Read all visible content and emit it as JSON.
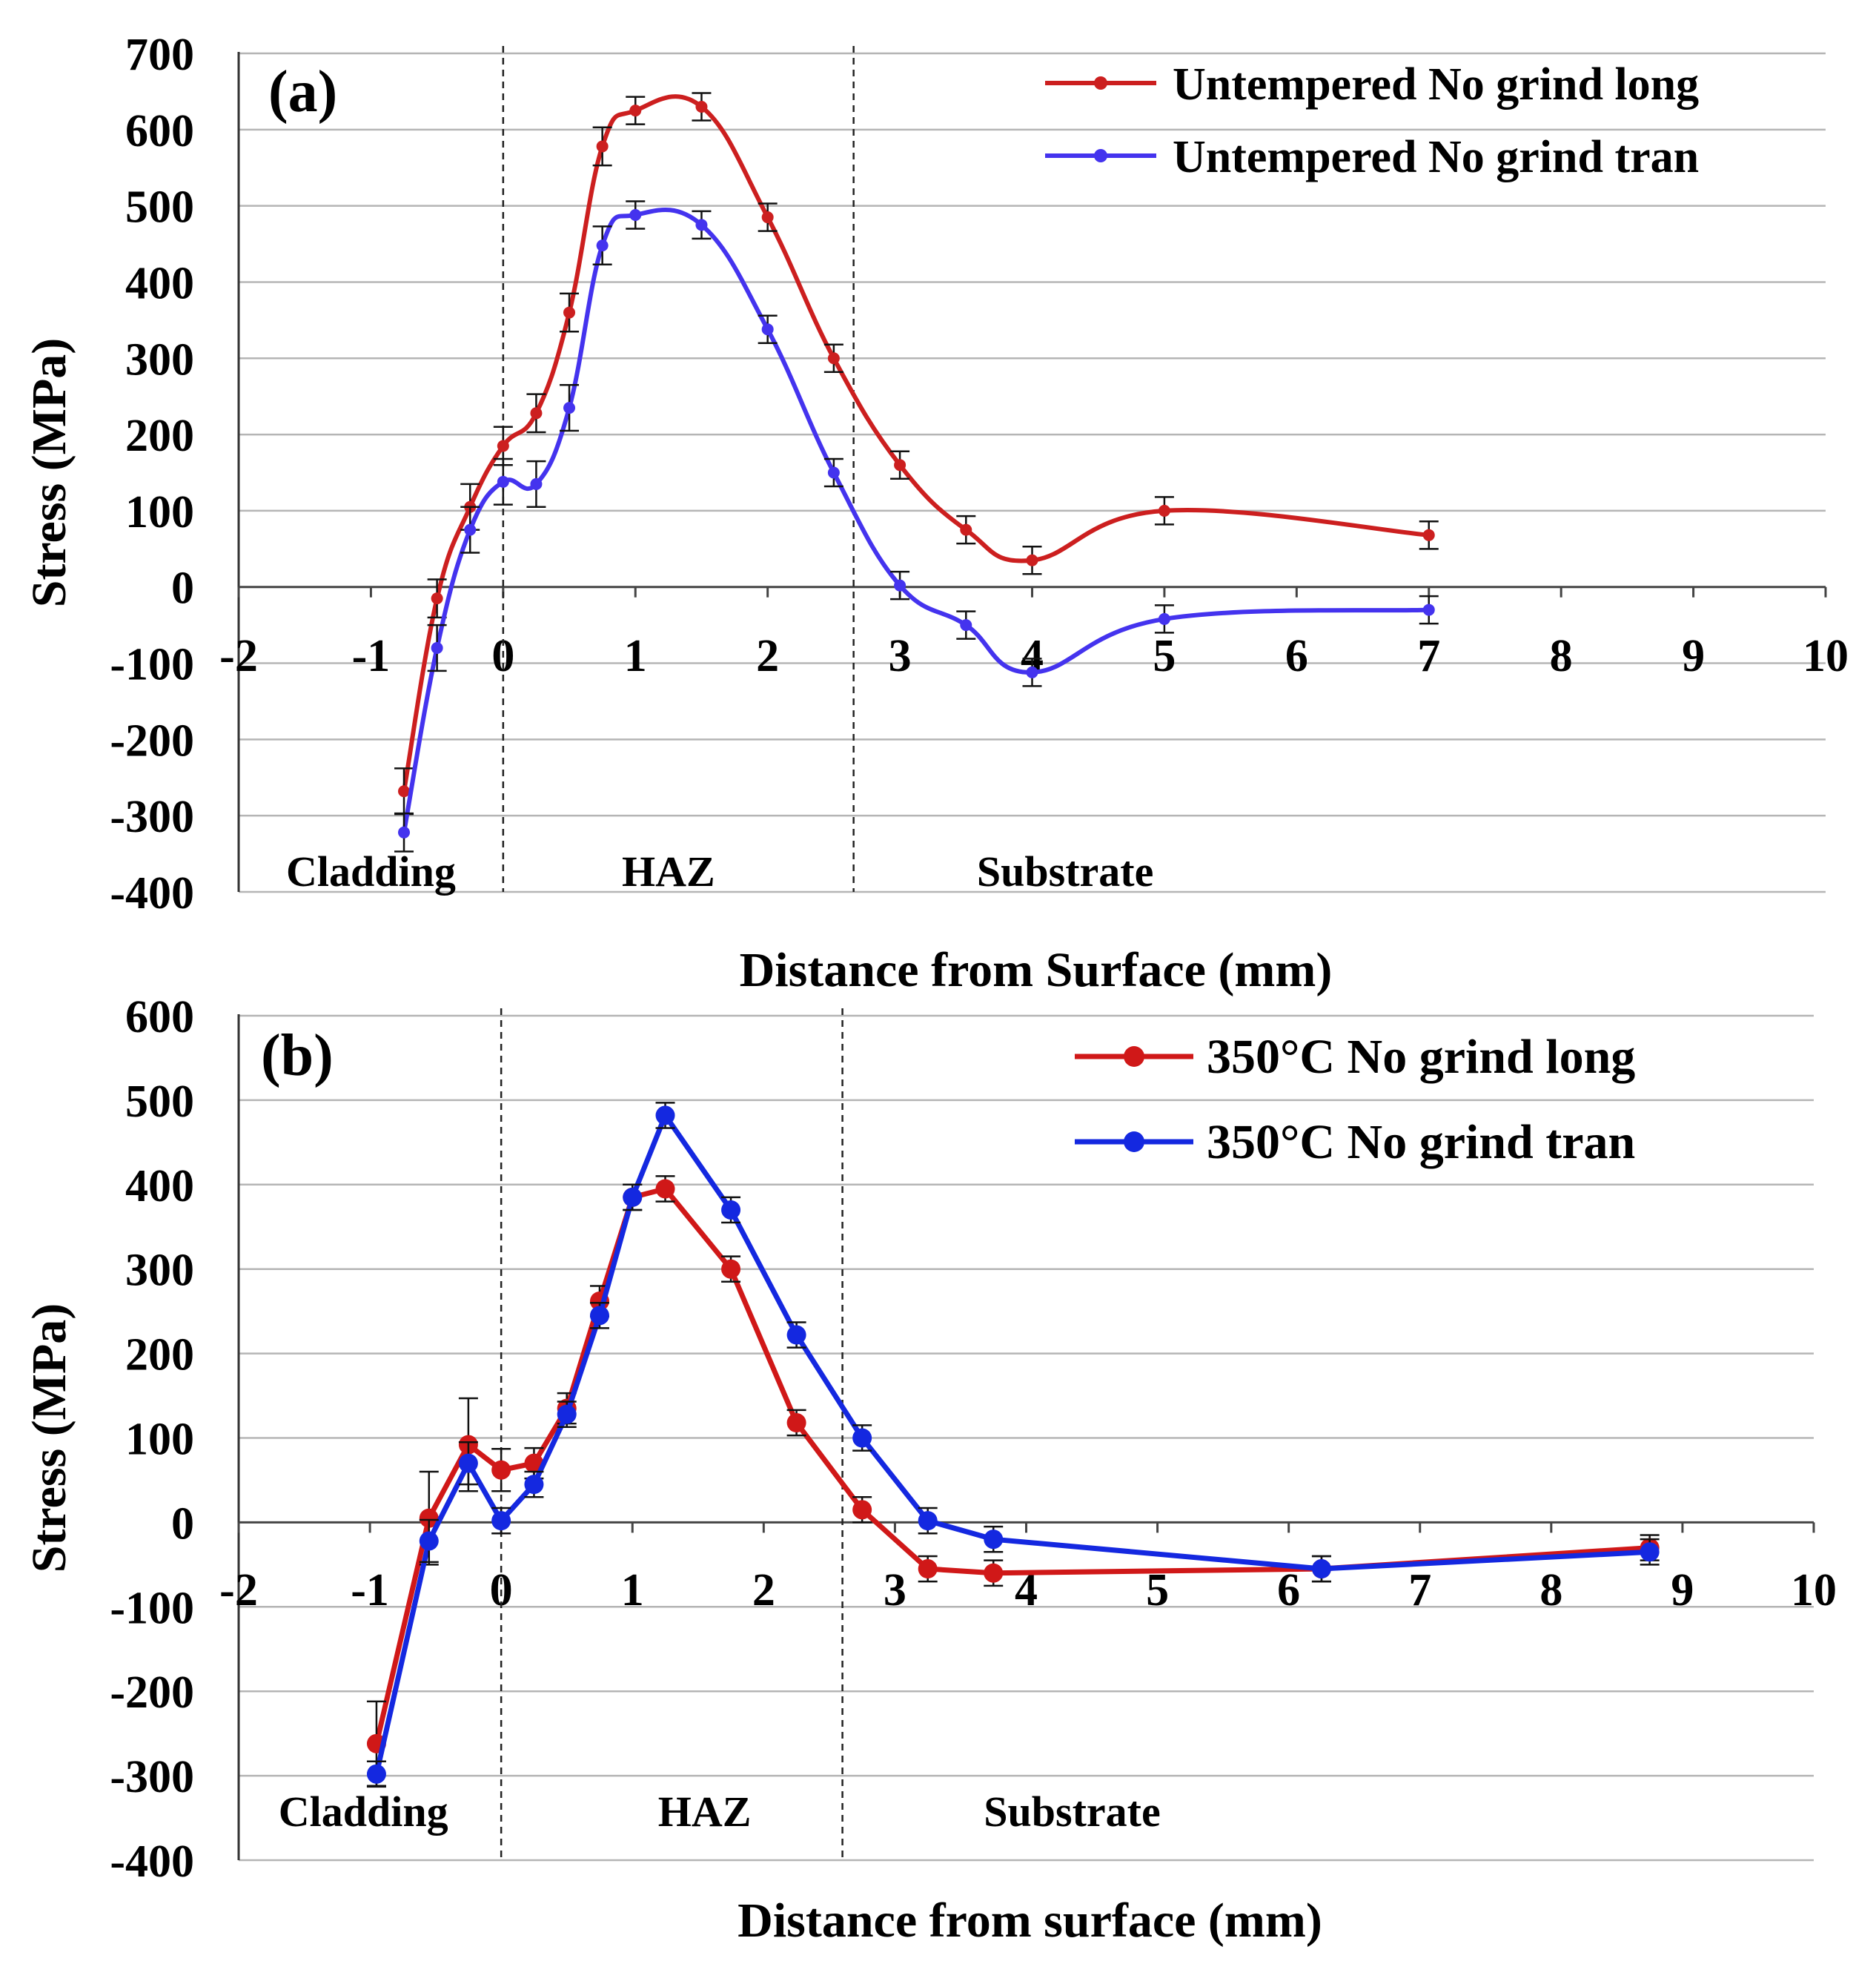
{
  "chart_data": [
    {
      "type": "line",
      "panel_label": "(a)",
      "xlabel": "Distance from Surface (mm)",
      "ylabel": "Stress (MPa)",
      "xlim": [
        -2,
        10
      ],
      "ylim": [
        -400,
        700
      ],
      "xticks": [
        "-2",
        "-1",
        "0",
        "1",
        "2",
        "3",
        "4",
        "5",
        "6",
        "7",
        "8",
        "9",
        "10"
      ],
      "yticks": [
        "700",
        "600",
        "500",
        "400",
        "300",
        "200",
        "100",
        "0",
        "-100",
        "-200",
        "-300",
        "-400"
      ],
      "grid": "horizontal",
      "legend_position": "top-right",
      "region_boundaries": [
        0,
        2.65
      ],
      "regions": [
        {
          "label": "Cladding",
          "x": -1.0
        },
        {
          "label": "HAZ",
          "x": 1.25
        },
        {
          "label": "Substrate",
          "x": 4.25
        }
      ],
      "series": [
        {
          "name": "Untempered No grind long",
          "color": "#cc1f1f",
          "x": [
            -0.75,
            -0.5,
            -0.25,
            0,
            0.25,
            0.5,
            0.75,
            1.0,
            1.5,
            2.0,
            2.5,
            3.0,
            3.5,
            4.0,
            5.0,
            7.0
          ],
          "y": [
            -268,
            -15,
            105,
            185,
            228,
            360,
            578,
            625,
            630,
            485,
            300,
            160,
            75,
            35,
            100,
            68
          ],
          "error": [
            30,
            25,
            30,
            25,
            25,
            25,
            25,
            18,
            18,
            18,
            18,
            18,
            18,
            18,
            18,
            18
          ]
        },
        {
          "name": "Untempered No grind tran",
          "color": "#4433ee",
          "x": [
            -0.75,
            -0.5,
            -0.25,
            0,
            0.25,
            0.5,
            0.75,
            1.0,
            1.5,
            2.0,
            2.5,
            3.0,
            3.5,
            4.0,
            5.0,
            7.0
          ],
          "y": [
            -322,
            -80,
            75,
            138,
            135,
            235,
            448,
            488,
            475,
            338,
            150,
            2,
            -50,
            -112,
            -42,
            -30
          ],
          "error": [
            25,
            30,
            30,
            30,
            30,
            30,
            25,
            18,
            18,
            18,
            18,
            18,
            18,
            18,
            18,
            18
          ]
        }
      ]
    },
    {
      "type": "line",
      "panel_label": "(b)",
      "xlabel": "Distance from surface (mm)",
      "ylabel": "Stress (MPa)",
      "xlim": [
        -2,
        10
      ],
      "ylim": [
        -400,
        600
      ],
      "xticks": [
        "-2",
        "-1",
        "0",
        "1",
        "2",
        "3",
        "4",
        "5",
        "6",
        "7",
        "8",
        "9",
        "10"
      ],
      "yticks": [
        "600",
        "500",
        "400",
        "300",
        "200",
        "100",
        "0",
        "-100",
        "-200",
        "-300",
        "-400"
      ],
      "grid": "horizontal",
      "legend_position": "top-right",
      "region_boundaries": [
        0,
        2.6
      ],
      "regions": [
        {
          "label": "Cladding",
          "x": -1.05
        },
        {
          "label": "HAZ",
          "x": 1.55
        },
        {
          "label": "Substrate",
          "x": 4.35
        }
      ],
      "series": [
        {
          "name": "350°C No grind long",
          "color": "#d01818",
          "x": [
            -0.95,
            -0.55,
            -0.25,
            0,
            0.25,
            0.5,
            0.75,
            1.0,
            1.25,
            1.75,
            2.25,
            2.75,
            3.25,
            3.75,
            6.25,
            8.75
          ],
          "y": [
            -262,
            5,
            92,
            62,
            70,
            135,
            262,
            385,
            395,
            300,
            118,
            15,
            -55,
            -60,
            -55,
            -30
          ],
          "error": [
            50,
            55,
            55,
            25,
            18,
            18,
            18,
            15,
            15,
            15,
            15,
            15,
            15,
            15,
            15,
            15
          ]
        },
        {
          "name": "350°C No grind tran",
          "color": "#1428e0",
          "x": [
            -0.95,
            -0.55,
            -0.25,
            0,
            0.25,
            0.5,
            0.75,
            1.0,
            1.25,
            1.75,
            2.25,
            2.75,
            3.25,
            3.75,
            6.25,
            8.75
          ],
          "y": [
            -298,
            -22,
            70,
            2,
            45,
            128,
            245,
            385,
            482,
            370,
            222,
            100,
            2,
            -20,
            -55,
            -35
          ],
          "error": [
            15,
            25,
            25,
            15,
            15,
            15,
            15,
            15,
            15,
            15,
            15,
            15,
            15,
            15,
            15,
            15
          ]
        }
      ]
    }
  ]
}
